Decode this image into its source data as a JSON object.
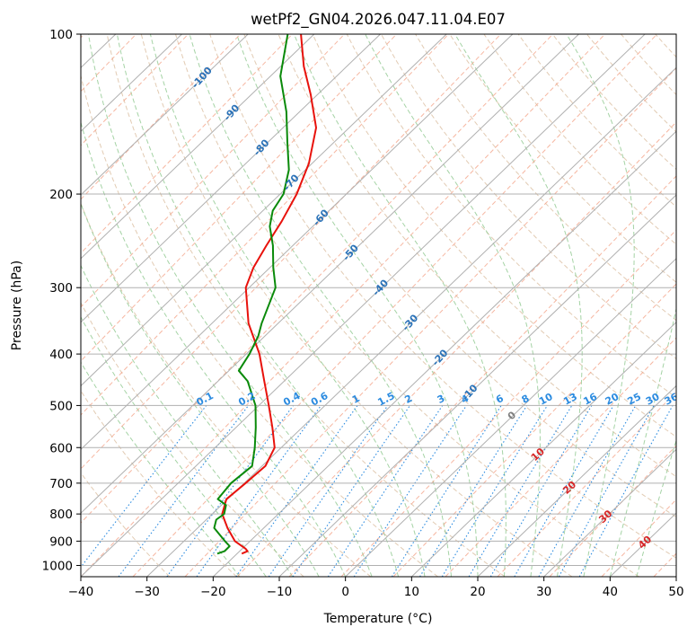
{
  "chart_data": {
    "type": "skewt",
    "title": "wetPf2_GN04.2026.047.11.04.E07",
    "xlabel": "Temperature (°C)",
    "ylabel": "Pressure (hPa)",
    "xlim": [
      -40,
      50
    ],
    "ylim_hPa": [
      1050,
      100
    ],
    "y_scale": "log",
    "grid": true,
    "x_ticks": [
      -40,
      -30,
      -20,
      -10,
      0,
      10,
      20,
      30,
      40,
      50
    ],
    "x_tick_labels": [
      "−40",
      "−30",
      "−20",
      "−10",
      "0",
      "10",
      "20",
      "30",
      "40",
      "50"
    ],
    "y_ticks": [
      100,
      200,
      300,
      400,
      500,
      600,
      700,
      800,
      900,
      1000
    ],
    "y_tick_labels": [
      "100",
      "200",
      "300",
      "400",
      "500",
      "600",
      "700",
      "800",
      "900",
      "1000"
    ],
    "isotherm_labels": [
      "-100",
      "-90",
      "-80",
      "-70",
      "-60",
      "-50",
      "-40",
      "-30",
      "-20",
      "-10"
    ],
    "isotherm_label_values": [
      -100,
      -90,
      -80,
      -70,
      -60,
      -50,
      -40,
      -30,
      -20,
      -10
    ],
    "mixing_ratio_labels": [
      "0.1",
      "0.2",
      "0.4",
      "0.6",
      "1",
      "1.5",
      "2",
      "3",
      "4",
      "6",
      "8",
      "10",
      "13",
      "16",
      "20",
      "25",
      "30",
      "36"
    ],
    "mixing_ratio_values": [
      0.1,
      0.2,
      0.4,
      0.6,
      1,
      1.5,
      2,
      3,
      4,
      6,
      8,
      10,
      13,
      16,
      20,
      25,
      30,
      36
    ],
    "warm_isotherm_labels": [
      "0",
      "10",
      "20",
      "30",
      "40"
    ],
    "warm_isotherm_values": [
      0,
      10,
      20,
      30,
      40
    ],
    "colors": {
      "temperature": "#e8120c",
      "dewpoint": "#0a8a0a",
      "isotherm_label": "#2a72b8",
      "mixing_ratio": "#2b8be0",
      "warm_label": "#d62728",
      "zero_label": "#7f7f7f",
      "dry_adiabat": "#d8b99a",
      "moist_adiabat": "#8fc88f",
      "red_dashed": "#f4a58a",
      "grid": "#b0b0b0"
    },
    "series": [
      {
        "name": "temperature",
        "pressure": [
          950,
          940,
          930,
          900,
          850,
          800,
          750,
          700,
          650,
          600,
          550,
          500,
          450,
          400,
          350,
          300,
          275,
          250,
          225,
          200,
          175,
          150,
          130,
          115,
          100
        ],
        "temp": [
          -19.3,
          -18.8,
          -19.5,
          -22.3,
          -25.5,
          -28.5,
          -30.2,
          -29.8,
          -29.5,
          -31.0,
          -34.5,
          -38.5,
          -43.0,
          -48.0,
          -54.5,
          -60.5,
          -62.5,
          -64.0,
          -65.5,
          -67.5,
          -70.5,
          -75.0,
          -81.0,
          -86.5,
          -92.0
        ]
      },
      {
        "name": "dewpoint",
        "pressure": [
          950,
          940,
          920,
          900,
          870,
          850,
          820,
          800,
          770,
          750,
          700,
          650,
          600,
          550,
          500,
          450,
          430,
          400,
          370,
          350,
          300,
          275,
          250,
          230,
          215,
          200,
          180,
          160,
          140,
          120,
          100
        ],
        "temp": [
          -23.0,
          -22.3,
          -22.3,
          -23.8,
          -26.0,
          -27.5,
          -28.5,
          -28.2,
          -29.3,
          -31.5,
          -32.0,
          -31.5,
          -34.0,
          -37.0,
          -40.5,
          -45.5,
          -48.5,
          -49.5,
          -51.0,
          -52.5,
          -56.0,
          -59.5,
          -63.0,
          -66.5,
          -68.5,
          -69.5,
          -72.5,
          -77.0,
          -82.0,
          -88.5,
          -94.0
        ]
      }
    ]
  }
}
